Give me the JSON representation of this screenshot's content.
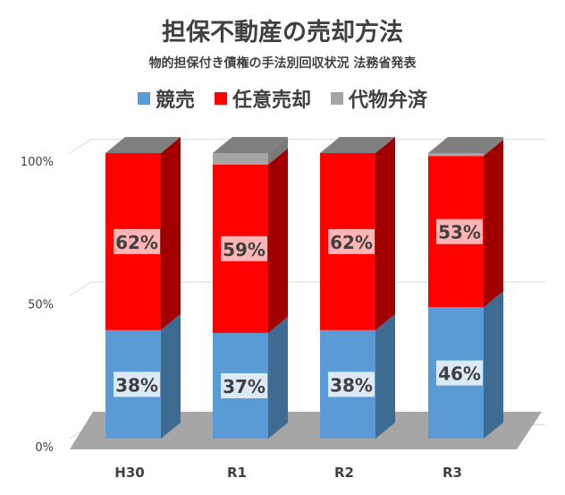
{
  "chart_data": {
    "type": "bar",
    "stacked": true,
    "title": "担保不動産の売却方法",
    "subtitle": "物的担保付き債権の手法別回収状況 法務省発表",
    "categories": [
      "H30",
      "R1",
      "R2",
      "R3"
    ],
    "series": [
      {
        "name": "競売",
        "values": [
          38,
          37,
          38,
          46
        ],
        "labels": [
          "38%",
          "37%",
          "38%",
          "46%"
        ],
        "color": "#5b9bd5",
        "side_color": "#3e6b92",
        "top_color": "#7aaede"
      },
      {
        "name": "任意売却",
        "values": [
          62,
          59,
          62,
          53
        ],
        "labels": [
          "62%",
          "59%",
          "62%",
          "53%"
        ],
        "color": "#ff0000",
        "side_color": "#a00000",
        "top_color": "#ff4040"
      },
      {
        "name": "代物弁済",
        "values": [
          0,
          4,
          0,
          1
        ],
        "labels": [
          "",
          "",
          "",
          ""
        ],
        "color": "#a5a5a5",
        "side_color": "#7a7a7a",
        "top_color": "#bfbfbf"
      }
    ],
    "yticks": [
      "0%",
      "50%",
      "100%"
    ],
    "ylim": [
      0,
      100
    ],
    "grid": true,
    "legend": "top"
  }
}
